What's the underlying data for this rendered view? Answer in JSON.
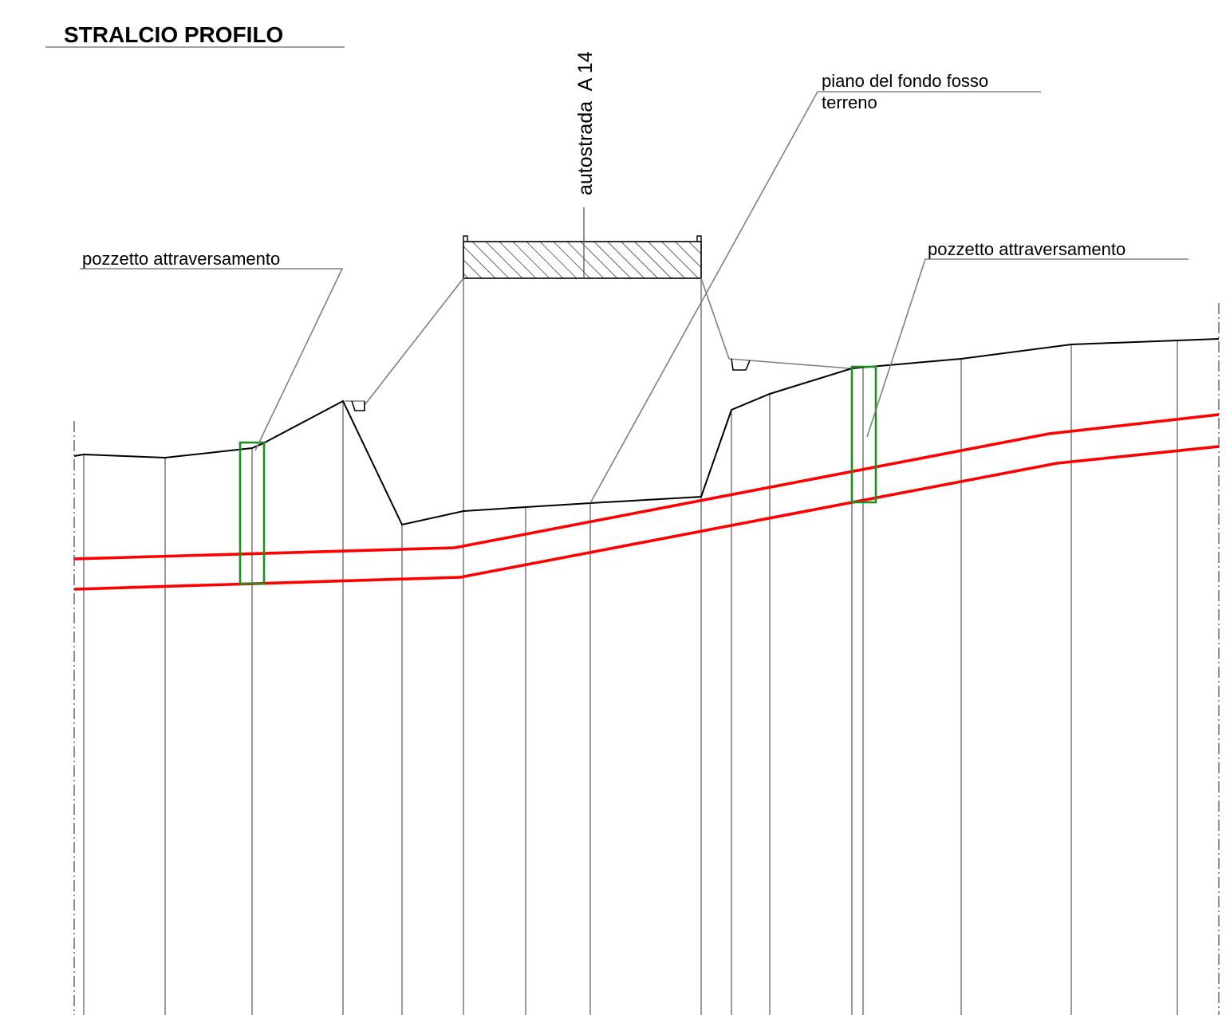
{
  "title": "STRALCIO PROFILO",
  "labels": {
    "highway": "autostrada  A 14",
    "ditch_bottom": "piano del fondo fosso",
    "terrain": "terreno",
    "manhole_left": "pozzetto attraversamento",
    "manhole_right": "pozzetto attraversamento"
  },
  "colors": {
    "pipe_lines": "#ff0000",
    "manholes": "#1f8f1f",
    "ground_profile": "#000000",
    "section_lines": "#808080",
    "hatch": "#000000"
  }
}
